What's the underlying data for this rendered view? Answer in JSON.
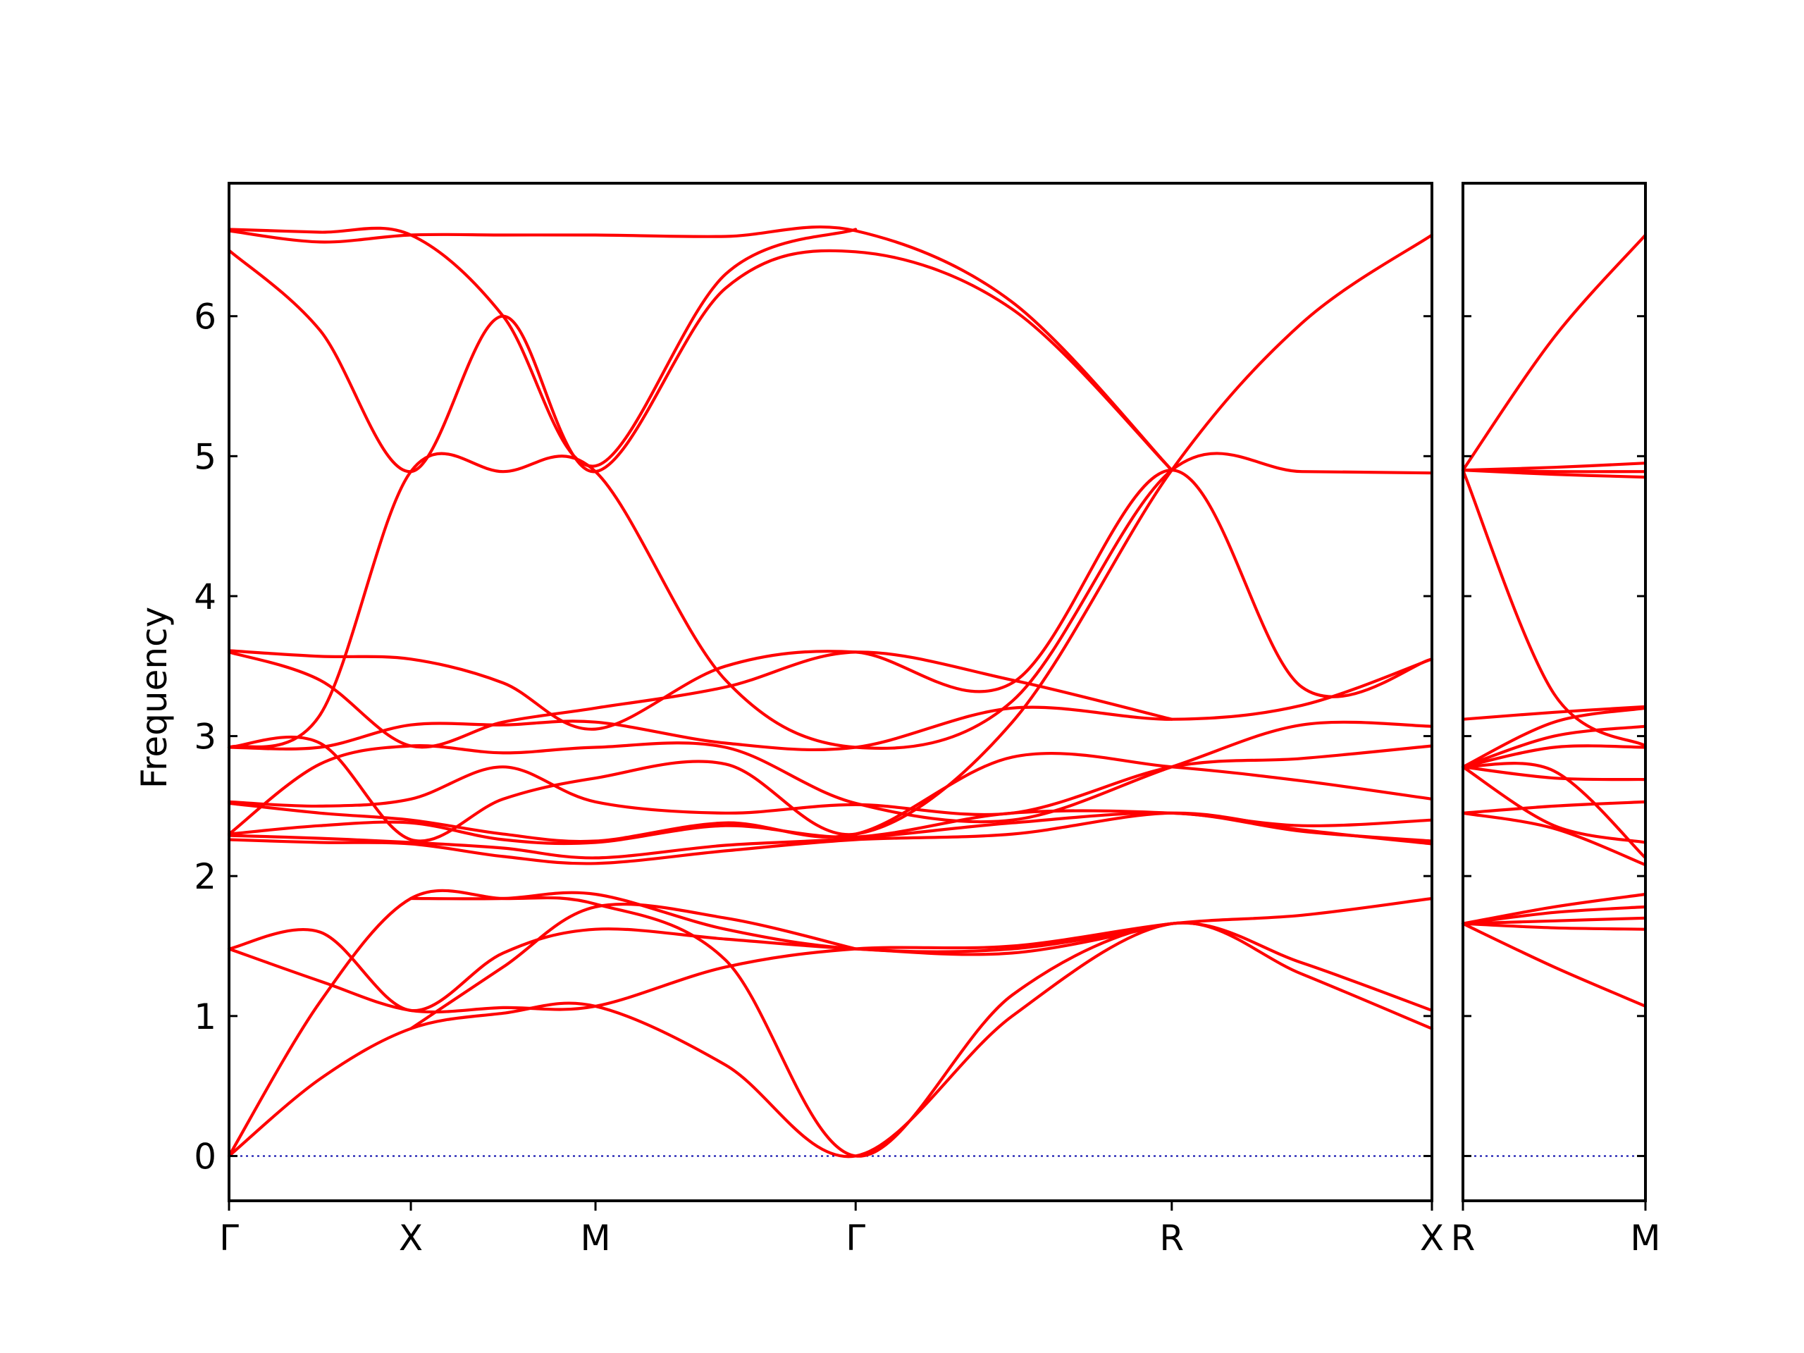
{
  "chart_data": {
    "type": "line",
    "title": "",
    "ylabel": "Frequency",
    "ylim": [
      -0.32,
      6.95
    ],
    "yticks": [
      0,
      1,
      2,
      3,
      4,
      5,
      6
    ],
    "grid": false,
    "legend": "none",
    "colors": {
      "bands": "#ff0000",
      "zero_line": "#0000aa",
      "axes": "#000000"
    },
    "panels": [
      {
        "name": "main",
        "xlim": [
          0,
          8.6
        ],
        "high_symmetry_points": [
          {
            "label": "Γ",
            "x": 0
          },
          {
            "label": "X",
            "x": 1.3
          },
          {
            "label": "M",
            "x": 2.62
          },
          {
            "label": "Γ",
            "x": 4.48
          },
          {
            "label": "R",
            "x": 6.74
          },
          {
            "label": "X",
            "x": 8.6
          }
        ],
        "bands": [
          [
            [
              0,
              0
            ],
            [
              0.65,
              0.55
            ],
            [
              1.3,
              0.91
            ],
            [
              1.96,
              1.02
            ],
            [
              2.62,
              1.07
            ],
            [
              3.55,
              0.65
            ],
            [
              4.48,
              0
            ],
            [
              5.6,
              1.0
            ],
            [
              6.74,
              1.66
            ],
            [
              7.67,
              1.3
            ],
            [
              8.6,
              0.91
            ]
          ],
          [
            [
              0,
              0
            ],
            [
              0.65,
              1.1
            ],
            [
              1.3,
              1.84
            ],
            [
              1.96,
              1.84
            ],
            [
              2.62,
              1.8
            ],
            [
              3.55,
              1.4
            ],
            [
              4.48,
              0
            ],
            [
              5.6,
              1.15
            ],
            [
              6.74,
              1.66
            ],
            [
              7.67,
              1.38
            ],
            [
              8.6,
              1.04
            ]
          ],
          [
            [
              0,
              1.48
            ],
            [
              0.65,
              1.25
            ],
            [
              1.3,
              1.04
            ],
            [
              1.96,
              1.06
            ],
            [
              2.62,
              1.07
            ],
            [
              3.55,
              1.35
            ],
            [
              4.48,
              1.48
            ],
            [
              5.6,
              1.5
            ],
            [
              6.74,
              1.66
            ],
            [
              7.67,
              1.72
            ],
            [
              8.6,
              1.84
            ]
          ],
          [
            [
              0,
              1.48
            ],
            [
              0.65,
              1.6
            ],
            [
              1.3,
              1.04
            ],
            [
              1.96,
              1.45
            ],
            [
              2.62,
              1.62
            ],
            [
              3.55,
              1.55
            ],
            [
              4.48,
              1.48
            ],
            [
              5.6,
              1.45
            ],
            [
              6.74,
              1.66
            ]
          ],
          [
            [
              1.3,
              1.84
            ],
            [
              1.96,
              1.84
            ],
            [
              2.62,
              1.87
            ],
            [
              3.55,
              1.62
            ],
            [
              4.48,
              1.48
            ],
            [
              5.6,
              1.48
            ],
            [
              6.74,
              1.66
            ]
          ],
          [
            [
              1.3,
              0.91
            ],
            [
              1.96,
              1.35
            ],
            [
              2.62,
              1.78
            ],
            [
              3.55,
              1.7
            ],
            [
              4.48,
              1.48
            ]
          ],
          [
            [
              0,
              2.26
            ],
            [
              0.65,
              2.24
            ],
            [
              1.3,
              2.23
            ],
            [
              1.96,
              2.14
            ],
            [
              2.62,
              2.09
            ],
            [
              3.55,
              2.18
            ],
            [
              4.48,
              2.26
            ],
            [
              5.6,
              2.3
            ],
            [
              6.74,
              2.45
            ],
            [
              7.67,
              2.33
            ],
            [
              8.6,
              2.23
            ]
          ],
          [
            [
              0,
              2.29
            ],
            [
              0.65,
              2.27
            ],
            [
              1.3,
              2.24
            ],
            [
              1.96,
              2.2
            ],
            [
              2.62,
              2.13
            ],
            [
              3.55,
              2.22
            ],
            [
              4.48,
              2.27
            ],
            [
              5.6,
              2.38
            ],
            [
              6.74,
              2.45
            ],
            [
              7.67,
              2.32
            ],
            [
              8.6,
              2.25
            ]
          ],
          [
            [
              0,
              2.3
            ],
            [
              0.65,
              2.36
            ],
            [
              1.3,
              2.38
            ],
            [
              1.96,
              2.26
            ],
            [
              2.62,
              2.24
            ],
            [
              3.55,
              2.36
            ],
            [
              4.48,
              2.28
            ],
            [
              5.6,
              2.45
            ],
            [
              6.74,
              2.45
            ],
            [
              7.67,
              2.36
            ],
            [
              8.6,
              2.4
            ]
          ],
          [
            [
              0,
              2.52
            ],
            [
              0.65,
              2.45
            ],
            [
              1.3,
              2.4
            ],
            [
              1.96,
              2.3
            ],
            [
              2.62,
              2.25
            ],
            [
              3.55,
              2.38
            ],
            [
              4.48,
              2.3
            ],
            [
              5.6,
              2.85
            ],
            [
              6.74,
              2.78
            ],
            [
              7.67,
              2.68
            ],
            [
              8.6,
              2.55
            ]
          ],
          [
            [
              0,
              2.53
            ],
            [
              0.65,
              2.5
            ],
            [
              1.3,
              2.55
            ],
            [
              1.96,
              2.78
            ],
            [
              2.62,
              2.53
            ],
            [
              3.55,
              2.45
            ],
            [
              4.48,
              2.51
            ],
            [
              5.6,
              2.45
            ],
            [
              6.74,
              2.78
            ],
            [
              7.67,
              2.84
            ],
            [
              8.6,
              2.93
            ]
          ],
          [
            [
              0,
              2.3
            ],
            [
              0.65,
              2.8
            ],
            [
              1.3,
              2.93
            ],
            [
              1.96,
              2.88
            ],
            [
              2.62,
              2.92
            ],
            [
              3.55,
              2.92
            ],
            [
              4.48,
              2.52
            ],
            [
              5.6,
              2.4
            ],
            [
              6.74,
              2.78
            ],
            [
              7.67,
              3.08
            ],
            [
              8.6,
              3.07
            ]
          ],
          [
            [
              0,
              2.92
            ],
            [
              0.65,
              2.92
            ],
            [
              1.3,
              3.08
            ],
            [
              1.96,
              3.08
            ],
            [
              2.62,
              3.1
            ],
            [
              3.55,
              2.95
            ],
            [
              4.48,
              2.92
            ],
            [
              5.6,
              3.2
            ],
            [
              6.74,
              3.12
            ],
            [
              7.67,
              3.22
            ],
            [
              8.6,
              3.55
            ]
          ],
          [
            [
              0,
              3.6
            ],
            [
              0.65,
              3.4
            ],
            [
              1.3,
              2.93
            ],
            [
              1.96,
              3.1
            ],
            [
              2.62,
              3.2
            ],
            [
              3.55,
              3.35
            ],
            [
              4.48,
              3.6
            ],
            [
              5.6,
              3.4
            ],
            [
              6.74,
              3.12
            ]
          ],
          [
            [
              0,
              3.61
            ],
            [
              0.65,
              3.57
            ],
            [
              1.3,
              3.55
            ],
            [
              1.96,
              3.38
            ],
            [
              2.62,
              3.05
            ],
            [
              3.55,
              3.5
            ],
            [
              4.48,
              3.6
            ],
            [
              5.6,
              3.38
            ],
            [
              6.74,
              4.9
            ],
            [
              7.67,
              3.35
            ],
            [
              8.6,
              3.55
            ]
          ],
          [
            [
              0,
              2.92
            ],
            [
              0.65,
              2.95
            ],
            [
              1.3,
              2.26
            ],
            [
              1.96,
              2.55
            ],
            [
              2.62,
              2.7
            ],
            [
              3.55,
              2.8
            ],
            [
              4.48,
              2.3
            ],
            [
              5.6,
              3.1
            ],
            [
              6.74,
              4.9
            ],
            [
              7.67,
              5.95
            ],
            [
              8.6,
              6.58
            ]
          ],
          [
            [
              0,
              2.92
            ],
            [
              0.65,
              3.15
            ],
            [
              1.3,
              4.89
            ],
            [
              1.96,
              4.89
            ],
            [
              2.62,
              4.89
            ],
            [
              3.55,
              3.4
            ],
            [
              4.48,
              2.92
            ],
            [
              5.6,
              3.25
            ],
            [
              6.74,
              4.9
            ],
            [
              7.67,
              4.89
            ],
            [
              8.6,
              4.88
            ]
          ],
          [
            [
              0,
              6.47
            ],
            [
              0.65,
              5.9
            ],
            [
              1.3,
              4.89
            ],
            [
              1.96,
              6.0
            ],
            [
              2.62,
              4.89
            ],
            [
              3.55,
              6.2
            ],
            [
              4.48,
              6.46
            ],
            [
              5.6,
              6.05
            ],
            [
              6.74,
              4.9
            ]
          ],
          [
            [
              0,
              6.61
            ],
            [
              0.65,
              6.53
            ],
            [
              1.3,
              6.58
            ],
            [
              1.96,
              6.58
            ],
            [
              2.62,
              6.58
            ],
            [
              3.55,
              6.57
            ],
            [
              4.48,
              6.61
            ],
            [
              5.6,
              6.1
            ],
            [
              6.74,
              4.9
            ]
          ],
          [
            [
              0,
              6.62
            ],
            [
              0.65,
              6.6
            ],
            [
              1.3,
              6.58
            ],
            [
              1.96,
              6.0
            ],
            [
              2.62,
              4.93
            ],
            [
              3.55,
              6.3
            ],
            [
              4.48,
              6.62
            ]
          ]
        ]
      },
      {
        "name": "right",
        "xlim": [
          0,
          1.0
        ],
        "high_symmetry_points": [
          {
            "label": "R",
            "x": 0
          },
          {
            "label": "M",
            "x": 1.0
          }
        ],
        "bands": [
          [
            [
              0,
              1.66
            ],
            [
              0.5,
              1.35
            ],
            [
              1.0,
              1.07
            ]
          ],
          [
            [
              0,
              1.66
            ],
            [
              0.5,
              1.63
            ],
            [
              1.0,
              1.62
            ]
          ],
          [
            [
              0,
              1.66
            ],
            [
              0.5,
              1.68
            ],
            [
              1.0,
              1.7
            ]
          ],
          [
            [
              0,
              1.66
            ],
            [
              0.5,
              1.74
            ],
            [
              1.0,
              1.78
            ]
          ],
          [
            [
              0,
              1.66
            ],
            [
              0.5,
              1.78
            ],
            [
              1.0,
              1.87
            ]
          ],
          [
            [
              0,
              2.45
            ],
            [
              0.5,
              2.34
            ],
            [
              1.0,
              2.08
            ]
          ],
          [
            [
              0,
              2.45
            ],
            [
              0.5,
              2.5
            ],
            [
              1.0,
              2.53
            ]
          ],
          [
            [
              0,
              2.78
            ],
            [
              0.5,
              2.36
            ],
            [
              1.0,
              2.24
            ]
          ],
          [
            [
              0,
              2.78
            ],
            [
              0.5,
              2.75
            ],
            [
              1.0,
              2.13
            ]
          ],
          [
            [
              0,
              2.78
            ],
            [
              0.5,
              2.7
            ],
            [
              1.0,
              2.69
            ]
          ],
          [
            [
              0,
              2.78
            ],
            [
              0.5,
              2.92
            ],
            [
              1.0,
              2.92
            ]
          ],
          [
            [
              0,
              2.78
            ],
            [
              0.5,
              3.0
            ],
            [
              1.0,
              3.07
            ]
          ],
          [
            [
              0,
              2.78
            ],
            [
              0.5,
              3.1
            ],
            [
              1.0,
              3.2
            ]
          ],
          [
            [
              0,
              3.12
            ],
            [
              0.5,
              3.17
            ],
            [
              1.0,
              3.21
            ]
          ],
          [
            [
              0,
              4.9
            ],
            [
              0.5,
              3.3
            ],
            [
              1.0,
              2.93
            ]
          ],
          [
            [
              0,
              4.9
            ],
            [
              0.5,
              4.87
            ],
            [
              1.0,
              4.85
            ]
          ],
          [
            [
              0,
              4.9
            ],
            [
              0.5,
              4.89
            ],
            [
              1.0,
              4.89
            ]
          ],
          [
            [
              0,
              4.9
            ],
            [
              0.5,
              4.92
            ],
            [
              1.0,
              4.95
            ]
          ],
          [
            [
              0,
              4.9
            ],
            [
              0.5,
              5.85
            ],
            [
              1.0,
              6.58
            ]
          ]
        ]
      }
    ]
  }
}
